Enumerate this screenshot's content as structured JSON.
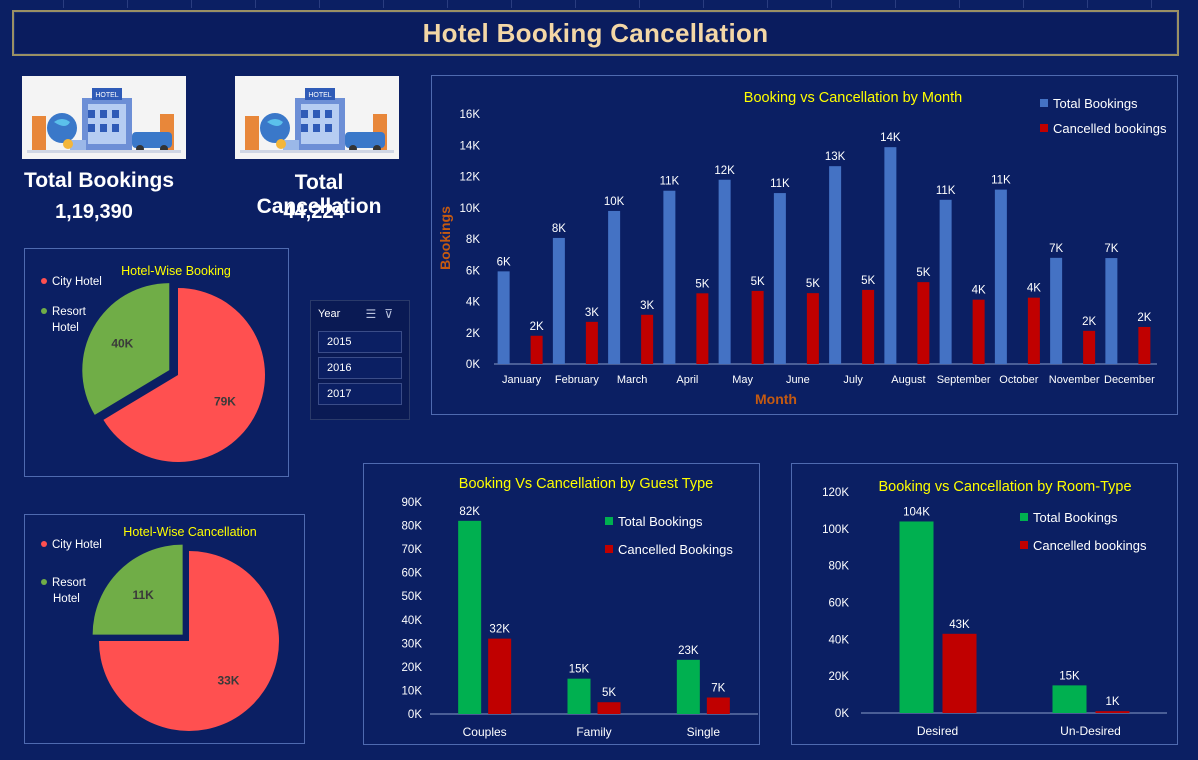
{
  "title": "Hotel Booking Cancellation",
  "kpis": {
    "total_bookings_label": "Total Bookings",
    "total_bookings_value": "1,19,390",
    "total_cancellation_label": "Total Cancellation",
    "total_cancellation_value": "44,224",
    "image_label": "HOTEL"
  },
  "slicer": {
    "header": "Year",
    "items": [
      "2015",
      "2016",
      "2017"
    ]
  },
  "colors": {
    "total_month": "#4472c4",
    "cancel": "#c00000",
    "total_green": "#00b050",
    "city": "#ff5050",
    "resort": "#70ad47",
    "chart_title": "#ffff00",
    "axis_title": "#c55a11"
  },
  "chart_data": [
    {
      "id": "month",
      "type": "bar",
      "title": "Booking vs Cancellation by Month",
      "xlabel": "Month",
      "ylabel": "Bookings",
      "ylim": [
        0,
        16000
      ],
      "yticks": [
        "0K",
        "2K",
        "4K",
        "6K",
        "8K",
        "10K",
        "12K",
        "14K",
        "16K"
      ],
      "legend": "top-right",
      "categories": [
        "January",
        "February",
        "March",
        "April",
        "May",
        "June",
        "July",
        "August",
        "September",
        "October",
        "November",
        "December"
      ],
      "series": [
        {
          "name": "Total Bookings",
          "values": [
            5929,
            8068,
            9794,
            11089,
            11791,
            10939,
            12661,
            13877,
            10508,
            11160,
            6794,
            6780
          ],
          "labels": [
            "6K",
            "8K",
            "10K",
            "11K",
            "12K",
            "11K",
            "13K",
            "14K",
            "11K",
            "11K",
            "7K",
            "7K"
          ]
        },
        {
          "name": "Cancelled bookings",
          "values": [
            1807,
            2696,
            3149,
            4524,
            4677,
            4535,
            4742,
            5239,
            4116,
            4246,
            2122,
            2371
          ],
          "labels": [
            "2K",
            "3K",
            "3K",
            "5K",
            "5K",
            "5K",
            "5K",
            "5K",
            "4K",
            "4K",
            "2K",
            "2K"
          ]
        }
      ]
    },
    {
      "id": "guest",
      "type": "bar",
      "title": "Booking Vs Cancellation by Guest Type",
      "ylim": [
        0,
        90000
      ],
      "yticks": [
        "0K",
        "10K",
        "20K",
        "30K",
        "40K",
        "50K",
        "60K",
        "70K",
        "80K",
        "90K"
      ],
      "legend": "top-right",
      "categories": [
        "Couples",
        "Family",
        "Single"
      ],
      "series": [
        {
          "name": "Total Bookings",
          "values": [
            82000,
            15000,
            23000
          ],
          "labels": [
            "82K",
            "15K",
            "23K"
          ]
        },
        {
          "name": "Cancelled Bookings",
          "values": [
            32000,
            5000,
            7000
          ],
          "labels": [
            "32K",
            "5K",
            "7K"
          ]
        }
      ]
    },
    {
      "id": "room",
      "type": "bar",
      "title": "Booking vs Cancellation by Room-Type",
      "ylim": [
        0,
        120000
      ],
      "yticks": [
        "0K",
        "20K",
        "40K",
        "60K",
        "80K",
        "100K",
        "120K"
      ],
      "legend": "top-right",
      "categories": [
        "Desired",
        "Un-Desired"
      ],
      "series": [
        {
          "name": "Total Bookings",
          "values": [
            104000,
            15000
          ],
          "labels": [
            "104K",
            "15K"
          ]
        },
        {
          "name": "Cancelled bookings",
          "values": [
            43000,
            1000
          ],
          "labels": [
            "43K",
            "1K"
          ]
        }
      ]
    },
    {
      "id": "pie_booking",
      "type": "pie",
      "title": "Hotel-Wise Booking",
      "legend": "left",
      "labels": [
        "City Hotel",
        "Resort Hotel"
      ],
      "values": [
        79000,
        40000
      ],
      "data_labels": [
        "79K",
        "40K"
      ]
    },
    {
      "id": "pie_cancel",
      "type": "pie",
      "title": "Hotel-Wise Cancellation",
      "legend": "left",
      "labels": [
        "City Hotel",
        "Resort Hotel"
      ],
      "values": [
        33000,
        11000
      ],
      "data_labels": [
        "33K",
        "11K"
      ]
    }
  ]
}
